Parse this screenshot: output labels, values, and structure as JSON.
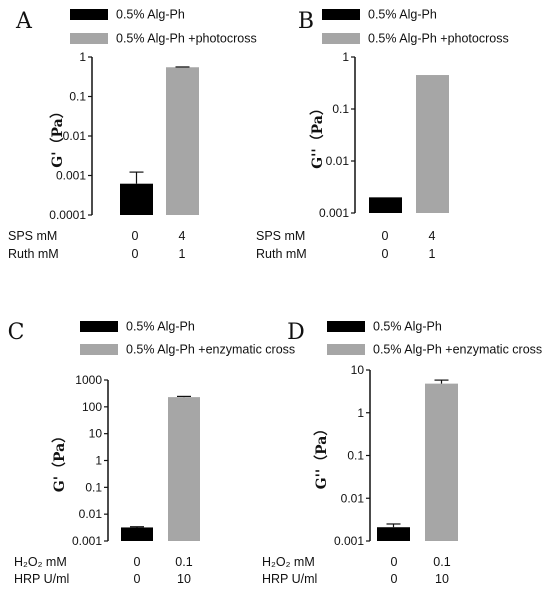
{
  "chart_data": [
    {
      "type": "bar",
      "panel_label": "A",
      "series": [
        {
          "name": "0.5% Alg-Ph",
          "color": "#000000",
          "value": 0.00062,
          "error": 0.0006
        },
        {
          "name": "0.5% Alg-Ph +photocross",
          "color": "#a6a6a6",
          "value": 0.55,
          "error": 0.01
        }
      ],
      "ylabel": "G'（Pa）",
      "yscale": "log",
      "ylim": [
        0.0001,
        1
      ],
      "yticks": [
        "1",
        "0.1",
        "0.01",
        "0.001",
        "0.0001"
      ],
      "conditions": [
        {
          "label": "SPS mM",
          "values": [
            "0",
            "4"
          ]
        },
        {
          "label": "Ruth mM",
          "values": [
            "0",
            "1"
          ]
        }
      ]
    },
    {
      "type": "bar",
      "panel_label": "B",
      "series": [
        {
          "name": "0.5% Alg-Ph",
          "color": "#000000",
          "value": 0.002,
          "error": 0
        },
        {
          "name": "0.5% Alg-Ph +photocross",
          "color": "#a6a6a6",
          "value": 0.45,
          "error": 0
        }
      ],
      "ylabel": "G''（Pa）",
      "yscale": "log",
      "ylim": [
        0.001,
        1
      ],
      "yticks": [
        "1",
        "0.1",
        "0.01",
        "0.001"
      ],
      "conditions": [
        {
          "label": "SPS mM",
          "values": [
            "0",
            "4"
          ]
        },
        {
          "label": "Ruth mM",
          "values": [
            "0",
            "1"
          ]
        }
      ]
    },
    {
      "type": "bar",
      "panel_label": "C",
      "series": [
        {
          "name": "0.5% Alg-Ph",
          "color": "#000000",
          "value": 0.0032,
          "error": 0.0002
        },
        {
          "name": "0.5% Alg-Ph +enzymatic cross",
          "color": "#a6a6a6",
          "value": 230,
          "error": 15
        }
      ],
      "ylabel": "G'（Pa）",
      "yscale": "log",
      "ylim": [
        0.001,
        1000
      ],
      "yticks": [
        "1000",
        "100",
        "10",
        "1",
        "0.1",
        "0.01",
        "0.001"
      ],
      "conditions": [
        {
          "label": "H₂O₂ mM",
          "values": [
            "0",
            "0.1"
          ]
        },
        {
          "label": "HRP U/ml",
          "values": [
            "0",
            "10"
          ]
        }
      ]
    },
    {
      "type": "bar",
      "panel_label": "D",
      "series": [
        {
          "name": "0.5% Alg-Ph",
          "color": "#000000",
          "value": 0.0021,
          "error": 0.0004
        },
        {
          "name": "0.5% Alg-Ph +enzymatic cross",
          "color": "#a6a6a6",
          "value": 4.8,
          "error": 1.0
        }
      ],
      "ylabel": "G''（Pa）",
      "yscale": "log",
      "ylim": [
        0.001,
        10
      ],
      "yticks": [
        "10",
        "1",
        "0.1",
        "0.01",
        "0.001"
      ],
      "conditions": [
        {
          "label": "H₂O₂ mM",
          "values": [
            "0",
            "0.1"
          ]
        },
        {
          "label": "HRP U/ml",
          "values": [
            "0",
            "10"
          ]
        }
      ]
    }
  ]
}
